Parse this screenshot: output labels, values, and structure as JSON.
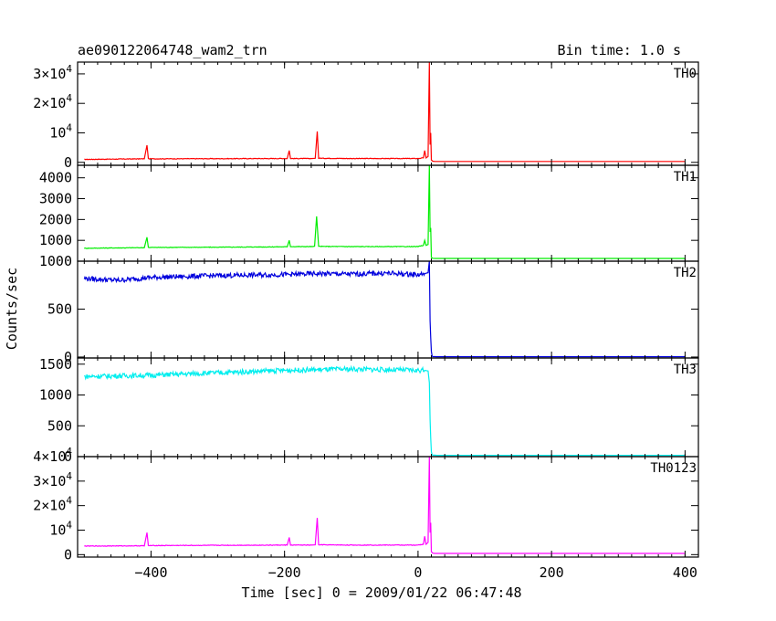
{
  "chart_data": {
    "type": "line",
    "title": "ae090122064748_wam2_trn",
    "bin_time": "Bin time: 1.0 s",
    "xlabel": "Time [sec] 0 = 2009/01/22 06:47:48",
    "ylabel": "Counts/sec",
    "xlim": [
      -510,
      420
    ],
    "xticks": [
      {
        "v": -400,
        "label": "−400"
      },
      {
        "v": -200,
        "label": "−200"
      },
      {
        "v": 0,
        "label": "0"
      },
      {
        "v": 200,
        "label": "200"
      },
      {
        "v": 400,
        "label": "400"
      }
    ],
    "panels": [
      {
        "name": "TH0",
        "color": "#ff0000",
        "ylim": [
          -1000,
          34000
        ],
        "yticks": [
          {
            "v": 0,
            "base": "0",
            "sup": ""
          },
          {
            "v": 10000,
            "base": "10",
            "sup": "4"
          },
          {
            "v": 20000,
            "base": "2×10",
            "sup": "4"
          },
          {
            "v": 30000,
            "base": "3×10",
            "sup": "4"
          }
        ],
        "series": {
          "x": [
            -500,
            -410,
            -406,
            -404,
            -402,
            -300,
            -196,
            -193,
            -191,
            -160,
            -154,
            -151,
            -149,
            -100,
            0,
            8,
            10,
            12,
            15,
            17,
            18,
            19,
            20,
            22,
            25,
            400
          ],
          "y": [
            1000,
            1200,
            5800,
            1300,
            1200,
            1250,
            1300,
            4000,
            1300,
            1300,
            1400,
            10500,
            1400,
            1300,
            1300,
            1500,
            4000,
            1500,
            2000,
            34000,
            6000,
            10000,
            800,
            400,
            300,
            300
          ]
        }
      },
      {
        "name": "TH1",
        "color": "#00ee00",
        "ylim": [
          0,
          4600
        ],
        "yticks": [
          {
            "v": 1000,
            "base": "1000",
            "sup": ""
          },
          {
            "v": 2000,
            "base": "2000",
            "sup": ""
          },
          {
            "v": 3000,
            "base": "3000",
            "sup": ""
          },
          {
            "v": 4000,
            "base": "4000",
            "sup": ""
          }
        ],
        "series": {
          "x": [
            -500,
            -410,
            -406,
            -404,
            -402,
            -300,
            -196,
            -193,
            -191,
            -158,
            -155,
            -152,
            -149,
            -100,
            0,
            8,
            10,
            12,
            15,
            17,
            18,
            19,
            20,
            22,
            25,
            400
          ],
          "y": [
            620,
            650,
            1150,
            660,
            660,
            670,
            690,
            1000,
            700,
            700,
            720,
            2150,
            710,
            700,
            700,
            760,
            1000,
            760,
            800,
            4700,
            1400,
            1600,
            180,
            140,
            130,
            130
          ]
        }
      },
      {
        "name": "TH2",
        "color": "#0000dd",
        "ylim": [
          -10,
          1000
        ],
        "yticks": [
          {
            "v": 0,
            "base": "0",
            "sup": ""
          },
          {
            "v": 500,
            "base": "500",
            "sup": ""
          },
          {
            "v": 1000,
            "base": "1000",
            "sup": ""
          }
        ],
        "series": {
          "x": [
            -500,
            -450,
            -400,
            -350,
            -300,
            -250,
            -200,
            -150,
            -100,
            -50,
            0,
            10,
            15,
            17,
            18,
            19,
            20,
            21,
            22,
            30,
            400
          ],
          "y": [
            820,
            800,
            830,
            840,
            850,
            855,
            860,
            870,
            865,
            875,
            860,
            870,
            880,
            1000,
            380,
            200,
            60,
            10,
            5,
            3,
            3
          ]
        }
      },
      {
        "name": "TH3",
        "color": "#00eeee",
        "ylim": [
          0,
          1600
        ],
        "yticks": [
          {
            "v": 0,
            "base": "0",
            "sup": ""
          },
          {
            "v": 500,
            "base": "500",
            "sup": ""
          },
          {
            "v": 1000,
            "base": "1000",
            "sup": ""
          },
          {
            "v": 1500,
            "base": "1500",
            "sup": ""
          }
        ],
        "series": {
          "x": [
            -500,
            -450,
            -400,
            -350,
            -300,
            -250,
            -200,
            -150,
            -100,
            -50,
            0,
            10,
            15,
            17,
            18,
            19,
            20,
            21,
            22,
            30,
            400
          ],
          "y": [
            1300,
            1310,
            1320,
            1340,
            1360,
            1380,
            1400,
            1410,
            1420,
            1410,
            1400,
            1400,
            1390,
            1200,
            600,
            300,
            80,
            30,
            25,
            20,
            20
          ]
        }
      },
      {
        "name": "TH0123",
        "color": "#ff00ff",
        "ylim": [
          -1000,
          40000
        ],
        "yticks": [
          {
            "v": 0,
            "base": "0",
            "sup": ""
          },
          {
            "v": 10000,
            "base": "10",
            "sup": "4"
          },
          {
            "v": 20000,
            "base": "2×10",
            "sup": "4"
          },
          {
            "v": 30000,
            "base": "3×10",
            "sup": "4"
          },
          {
            "v": 40000,
            "base": "4×10",
            "sup": "4"
          }
        ],
        "series": {
          "x": [
            -500,
            -410,
            -406,
            -404,
            -402,
            -300,
            -196,
            -193,
            -191,
            -160,
            -154,
            -151,
            -149,
            -100,
            0,
            8,
            10,
            12,
            15,
            17,
            18,
            19,
            20,
            22,
            25,
            400
          ],
          "y": [
            3500,
            3600,
            9000,
            3700,
            3700,
            3800,
            3900,
            7000,
            3900,
            3900,
            4000,
            15000,
            4000,
            3900,
            3900,
            4200,
            7500,
            4200,
            5000,
            41000,
            9000,
            13000,
            1200,
            600,
            500,
            500
          ]
        }
      }
    ]
  }
}
